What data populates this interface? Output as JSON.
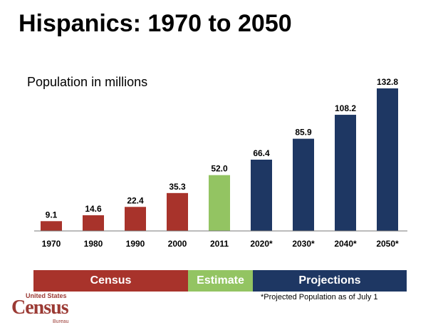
{
  "title": "Hispanics: 1970 to 2050",
  "subtitle": "Population in millions",
  "chart_data": {
    "type": "bar",
    "title": "Hispanics: 1970 to 2050",
    "ylabel": "Population in millions",
    "xlabel": "",
    "categories": [
      "1970",
      "1980",
      "1990",
      "2000",
      "2011",
      "2020*",
      "2030*",
      "2040*",
      "2050*"
    ],
    "values": [
      9.1,
      14.6,
      22.4,
      35.3,
      52.0,
      66.4,
      85.9,
      108.2,
      132.8
    ],
    "value_labels": [
      "9.1",
      "14.6",
      "22.4",
      "35.3",
      "52.0",
      "66.4",
      "85.9",
      "108.2",
      "132.8"
    ],
    "groups": [
      "Census",
      "Census",
      "Census",
      "Census",
      "Estimate",
      "Projections",
      "Projections",
      "Projections",
      "Projections"
    ],
    "ylim": [
      0,
      140
    ],
    "grid": false
  },
  "colors": {
    "Census": "#a8332b",
    "Estimate": "#93c462",
    "Projections": "#1e3763"
  },
  "legend": [
    "Census",
    "Estimate",
    "Projections"
  ],
  "footnote": "*Projected Population as of July 1",
  "logo": {
    "top": "United States",
    "main": "Census",
    "bottom": "Bureau"
  }
}
